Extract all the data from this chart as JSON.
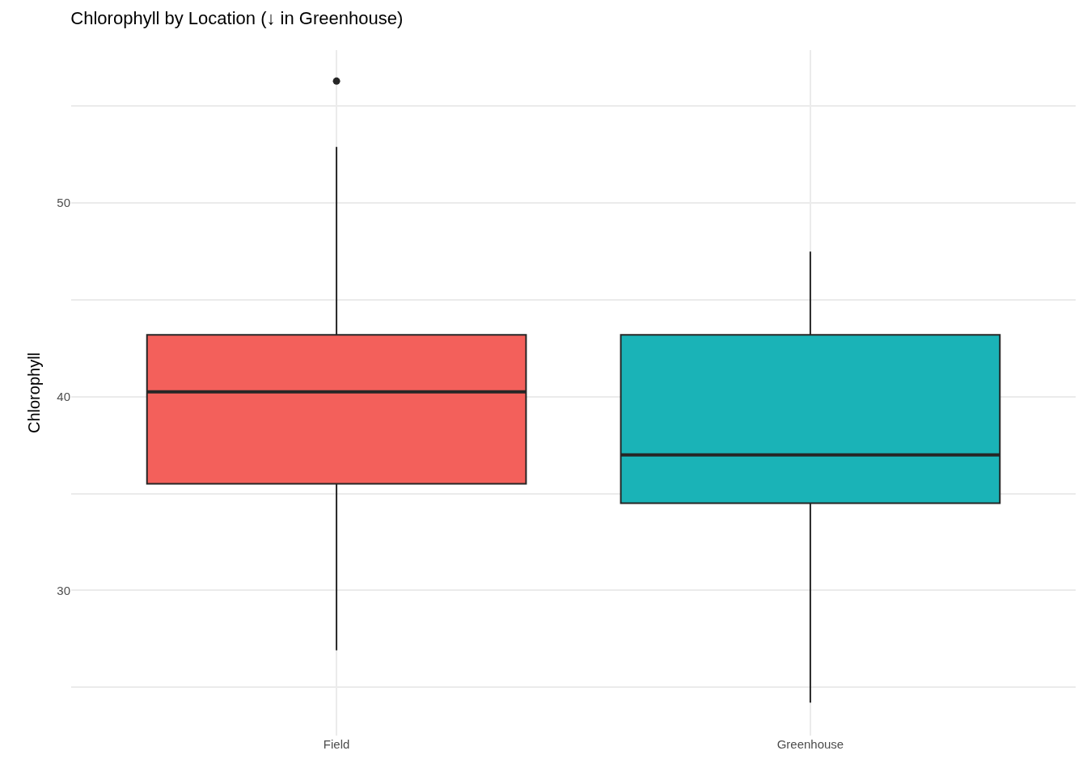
{
  "chart_data": {
    "type": "box",
    "title": "Chlorophyll by Location (↓ in Greenhouse)",
    "ylabel": "Chlorophyll",
    "categories": [
      "Field",
      "Greenhouse"
    ],
    "colors": [
      "#f3605b",
      "#1ab3b7"
    ],
    "boxes": [
      {
        "low": 26.9,
        "q1": 35.5,
        "median": 40.25,
        "q3": 43.2,
        "high": 52.9,
        "outliers": [
          56.3
        ]
      },
      {
        "low": 24.2,
        "q1": 34.5,
        "median": 37.0,
        "q3": 43.2,
        "high": 47.5
      }
    ],
    "ylim": [
      22.5,
      57.9
    ],
    "yticks": [
      {
        "value": 25,
        "label": null
      },
      30,
      {
        "value": 35,
        "label": null
      },
      40,
      {
        "value": 45,
        "label": null
      },
      50,
      {
        "value": 55,
        "label": null
      }
    ],
    "grid": true
  }
}
